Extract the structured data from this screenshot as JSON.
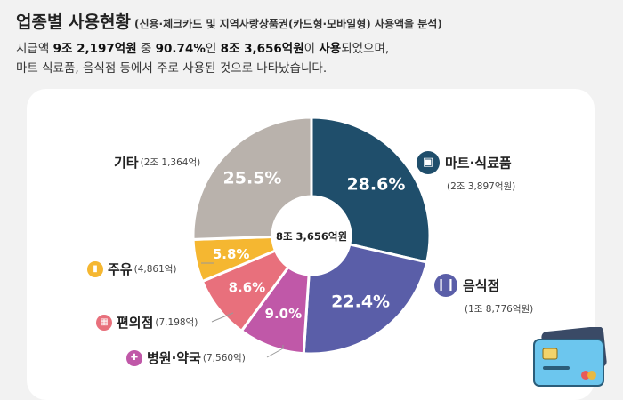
{
  "header": {
    "title": "업종별 사용현황",
    "subtitle": "(신용·체크카드 및 지역사랑상품권(카드형·모바일형) 사용액을 분석)"
  },
  "description": {
    "line1_a": "지급액 ",
    "line1_b": "9조 2,197억원",
    "line1_c": " 중 ",
    "line1_d": "90.74%",
    "line1_e": "인 ",
    "line1_f": "8조 3,656억원",
    "line1_g": "이 ",
    "line1_h": "사용",
    "line1_i": "되었으며,",
    "line2": "마트 식료품, 음식점 등에서 주로 사용된 것으로 나타났습니다."
  },
  "chart_data": {
    "type": "pie",
    "center_label": "8조 3,656억원",
    "slices": [
      {
        "label": "마트·식료품",
        "amount": "(2조 3,897억원)",
        "value": 28.6,
        "value_label": "28.6%",
        "color": "#1f4e6b",
        "icon": "basket-icon"
      },
      {
        "label": "음식점",
        "amount": "(1조 8,776억원)",
        "value": 22.4,
        "value_label": "22.4%",
        "color": "#5a5ea8",
        "icon": "utensils-icon"
      },
      {
        "label": "병원·약국",
        "amount": "(7,560억)",
        "value": 9.0,
        "value_label": "9.0%",
        "color": "#c058a8",
        "icon": "medical-cross-icon"
      },
      {
        "label": "편의점",
        "amount": "(7,198억)",
        "value": 8.6,
        "value_label": "8.6%",
        "color": "#e8707c",
        "icon": "store-icon"
      },
      {
        "label": "주유",
        "amount": "(4,861억)",
        "value": 5.8,
        "value_label": "5.8%",
        "color": "#f5b731",
        "icon": "fuel-icon"
      },
      {
        "label": "기타",
        "amount": "(2조 1,364억)",
        "value": 25.5,
        "value_label": "25.5%",
        "color": "#b9b2ac",
        "icon": ""
      }
    ]
  }
}
